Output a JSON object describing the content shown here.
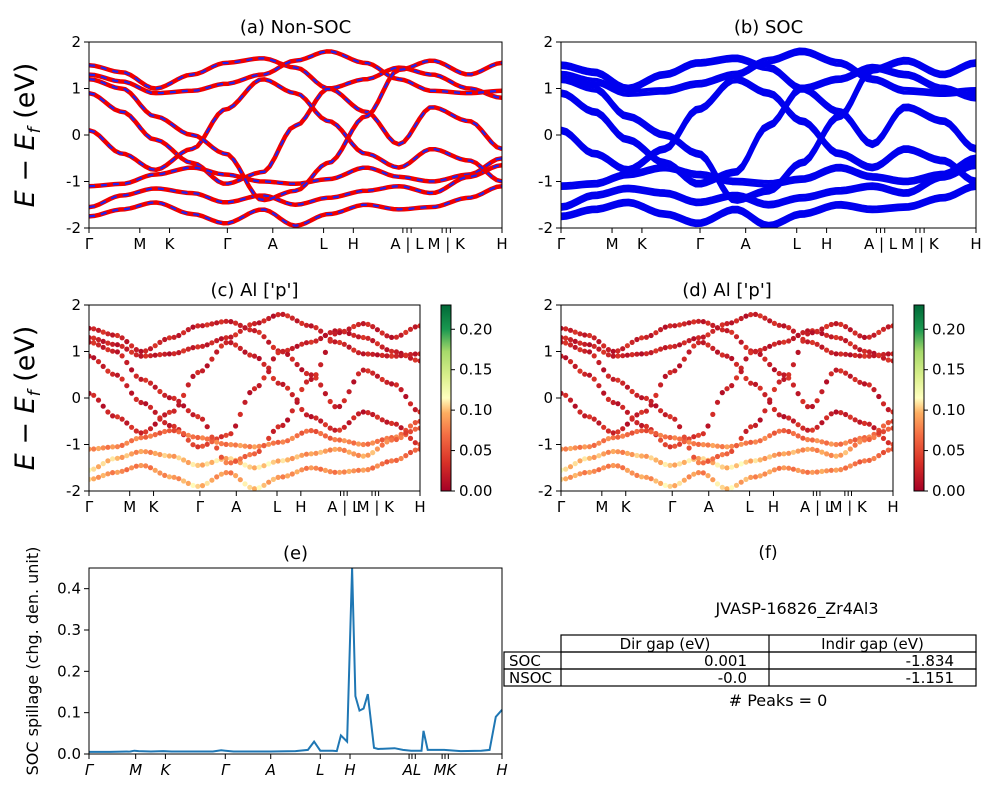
{
  "figure": {
    "id_label": "JVASP-16826_Zr4Al3",
    "peaks_text": "# Peaks = 0"
  },
  "chart_data": [
    {
      "panel": "a",
      "type": "line",
      "title": "(a) Non-SOC",
      "ylabel": "E − E_f (eV)",
      "ylim": [
        -2,
        2
      ],
      "yticks": [
        -2,
        -1,
        0,
        1,
        2
      ],
      "xticks": [
        "Γ",
        "M",
        "K",
        "Γ",
        "A",
        "L",
        "H",
        "A | L",
        "M | K",
        "H"
      ],
      "xtick_positions": [
        0,
        0.123,
        0.195,
        0.335,
        0.445,
        0.568,
        0.64,
        0.76,
        0.78,
        0.855,
        0.875,
        1.0
      ],
      "colors": {
        "main": "#ee0000",
        "dash": "#2222ee"
      },
      "series": [
        {
          "x": [
            0,
            0.08,
            0.16,
            0.25,
            0.33,
            0.42,
            0.5,
            0.58,
            0.67,
            0.75,
            0.83,
            0.92,
            1.0
          ],
          "y": [
            1.5,
            1.35,
            1.0,
            1.3,
            1.55,
            1.65,
            1.45,
            1.0,
            1.2,
            1.45,
            1.3,
            1.0,
            0.8
          ]
        },
        {
          "x": [
            0,
            0.08,
            0.16,
            0.25,
            0.33,
            0.42,
            0.5,
            0.58,
            0.67,
            0.75,
            0.83,
            0.92,
            1.0
          ],
          "y": [
            1.3,
            1.15,
            0.9,
            0.95,
            1.1,
            1.3,
            1.6,
            1.8,
            1.55,
            1.2,
            0.95,
            0.9,
            0.95
          ]
        },
        {
          "x": [
            0,
            0.08,
            0.16,
            0.25,
            0.33,
            0.42,
            0.5,
            0.58,
            0.67,
            0.75,
            0.83,
            0.92,
            1.0
          ],
          "y": [
            0.9,
            0.5,
            -0.1,
            -0.6,
            -1.05,
            -0.8,
            0.2,
            1.0,
            0.5,
            -0.2,
            0.6,
            0.3,
            -0.3
          ]
        },
        {
          "x": [
            0,
            0.08,
            0.16,
            0.25,
            0.33,
            0.42,
            0.5,
            0.58,
            0.67,
            0.75,
            0.83,
            0.92,
            1.0
          ],
          "y": [
            -1.1,
            -1.05,
            -0.85,
            -0.7,
            -0.85,
            -1.0,
            -1.05,
            -0.95,
            -0.7,
            -0.9,
            -1.0,
            -0.85,
            -0.5
          ]
        },
        {
          "x": [
            0,
            0.08,
            0.16,
            0.25,
            0.33,
            0.42,
            0.5,
            0.58,
            0.67,
            0.75,
            0.83,
            0.92,
            1.0
          ],
          "y": [
            -1.55,
            -1.3,
            -1.15,
            -1.25,
            -1.45,
            -1.3,
            -1.5,
            -1.35,
            -1.2,
            -1.1,
            -1.25,
            -0.9,
            -0.65
          ]
        },
        {
          "x": [
            0,
            0.08,
            0.16,
            0.25,
            0.33,
            0.42,
            0.5,
            0.58,
            0.67,
            0.75,
            0.83,
            0.92,
            1.0
          ],
          "y": [
            -1.75,
            -1.6,
            -1.45,
            -1.7,
            -1.9,
            -1.6,
            -1.95,
            -1.7,
            -1.5,
            -1.6,
            -1.55,
            -1.35,
            -1.1
          ]
        },
        {
          "x": [
            0,
            0.08,
            0.16,
            0.25,
            0.33,
            0.42,
            0.5,
            0.58,
            0.67,
            0.75,
            0.83,
            0.92,
            1.0
          ],
          "y": [
            0.1,
            -0.4,
            -0.75,
            -0.3,
            0.55,
            1.2,
            0.9,
            0.3,
            -0.4,
            -0.7,
            -0.3,
            -0.55,
            -1.0
          ]
        },
        {
          "x": [
            0,
            0.08,
            0.16,
            0.25,
            0.33,
            0.42,
            0.5,
            0.58,
            0.67,
            0.75,
            0.83,
            0.92,
            1.0
          ],
          "y": [
            1.2,
            1.0,
            0.4,
            0.0,
            -0.4,
            -1.4,
            -1.2,
            -0.6,
            0.4,
            1.4,
            1.6,
            1.3,
            1.55
          ]
        }
      ]
    },
    {
      "panel": "b",
      "type": "line",
      "title": "(b) SOC",
      "ylim": [
        -2,
        2
      ],
      "yticks": [
        -2,
        -1,
        0,
        1,
        2
      ],
      "xticks": [
        "Γ",
        "M",
        "K",
        "Γ",
        "A",
        "L",
        "H",
        "A | L",
        "M | K",
        "H"
      ],
      "xtick_positions": [
        0,
        0.123,
        0.195,
        0.335,
        0.445,
        0.568,
        0.64,
        0.76,
        0.78,
        0.855,
        0.875,
        1.0
      ],
      "colors": {
        "main": "#0000ee"
      },
      "series": "same band structure as panel (a), spin-split"
    },
    {
      "panel": "c",
      "type": "scatter",
      "title": "(c)  Al ['p']",
      "ylabel": "E − E_f (eV)",
      "ylim": [
        -2,
        2
      ],
      "yticks": [
        -2,
        -1,
        0,
        1,
        2
      ],
      "xticks": [
        "Γ",
        "M",
        "K",
        "Γ",
        "A",
        "L",
        "H",
        "A | L",
        "M | K",
        "H"
      ],
      "colorbar": {
        "ticks": [
          "0.00",
          "0.05",
          "0.10",
          "0.15",
          "0.20"
        ],
        "max": 0.23,
        "colormap": "RdYlGn"
      }
    },
    {
      "panel": "d",
      "type": "scatter",
      "title": "(d) Al ['p']",
      "ylim": [
        -2,
        2
      ],
      "yticks": [
        -2,
        -1,
        0,
        1,
        2
      ],
      "xticks": [
        "Γ",
        "M",
        "K",
        "Γ",
        "A",
        "L",
        "H",
        "A | L",
        "M | K",
        "H"
      ],
      "colorbar": {
        "ticks": [
          "0.00",
          "0.05",
          "0.10",
          "0.15",
          "0.20"
        ],
        "max": 0.23,
        "colormap": "RdYlGn"
      }
    },
    {
      "panel": "e",
      "type": "line",
      "title": "(e)",
      "ylabel": "SOC spillage (chg. den. unit)",
      "ylim": [
        0,
        0.45
      ],
      "yticks": [
        "0.0",
        "0.1",
        "0.2",
        "0.3",
        "0.4"
      ],
      "xticks": [
        "Γ",
        "M",
        "K",
        "Γ",
        "A",
        "L",
        "H",
        "AL",
        "MK",
        "H"
      ],
      "xtick_positions": [
        0,
        0.113,
        0.185,
        0.33,
        0.44,
        0.56,
        0.632,
        0.775,
        0.79,
        0.855,
        0.87,
        1.0
      ],
      "color": "#1f77b4",
      "x": [
        0,
        0.05,
        0.1,
        0.11,
        0.12,
        0.15,
        0.18,
        0.2,
        0.25,
        0.3,
        0.32,
        0.33,
        0.35,
        0.4,
        0.44,
        0.5,
        0.53,
        0.545,
        0.56,
        0.59,
        0.6,
        0.61,
        0.625,
        0.637,
        0.645,
        0.655,
        0.665,
        0.675,
        0.69,
        0.7,
        0.74,
        0.76,
        0.78,
        0.8,
        0.805,
        0.81,
        0.82,
        0.86,
        0.9,
        0.95,
        0.97,
        0.985,
        1.0
      ],
      "y": [
        0.005,
        0.005,
        0.006,
        0.008,
        0.007,
        0.006,
        0.007,
        0.006,
        0.006,
        0.006,
        0.009,
        0.008,
        0.006,
        0.006,
        0.006,
        0.007,
        0.01,
        0.03,
        0.008,
        0.008,
        0.007,
        0.045,
        0.03,
        0.45,
        0.14,
        0.105,
        0.11,
        0.145,
        0.015,
        0.012,
        0.014,
        0.01,
        0.008,
        0.008,
        0.008,
        0.056,
        0.01,
        0.01,
        0.007,
        0.008,
        0.01,
        0.09,
        0.107
      ]
    },
    {
      "panel": "f",
      "type": "table",
      "title": "(f)",
      "columns": [
        "Dir gap (eV)",
        "Indir gap (eV)"
      ],
      "rows": [
        {
          "label": "SOC",
          "values": [
            "0.001",
            "-1.834"
          ]
        },
        {
          "label": "NSOC",
          "values": [
            "-0.0",
            "-1.151"
          ]
        }
      ]
    }
  ]
}
